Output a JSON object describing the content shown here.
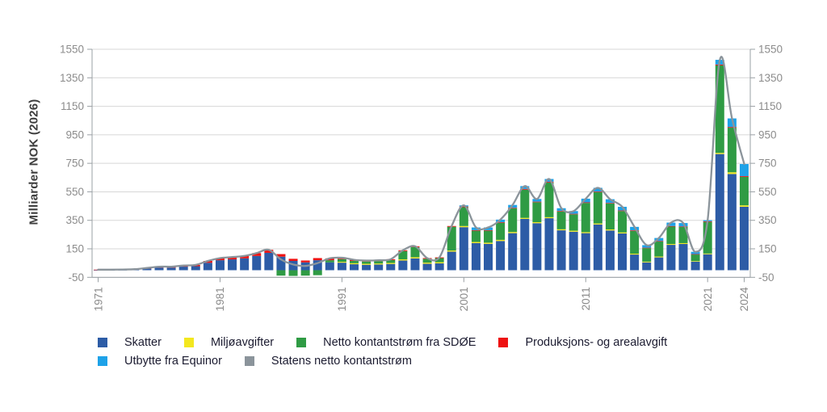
{
  "chart_data": {
    "type": "bar",
    "stacked": true,
    "title": "",
    "ylabel": "Milliarder NOK (2026)",
    "ylim": [
      -50,
      1550
    ],
    "y_ticks": [
      -50,
      150,
      350,
      550,
      750,
      950,
      1150,
      1350,
      1550
    ],
    "x_tick_labels": [
      "1971",
      "1981",
      "1991",
      "2001",
      "2011",
      "2021",
      "2024"
    ],
    "grid": true,
    "legend_position": "bottom",
    "years": [
      1971,
      1972,
      1973,
      1974,
      1975,
      1976,
      1977,
      1978,
      1979,
      1980,
      1981,
      1982,
      1983,
      1984,
      1985,
      1986,
      1987,
      1988,
      1989,
      1990,
      1991,
      1992,
      1993,
      1994,
      1995,
      1996,
      1997,
      1998,
      1999,
      2000,
      2001,
      2002,
      2003,
      2004,
      2005,
      2006,
      2007,
      2008,
      2009,
      2010,
      2011,
      2012,
      2013,
      2014,
      2015,
      2016,
      2017,
      2018,
      2019,
      2020,
      2021,
      2022,
      2023,
      2024
    ],
    "series": [
      {
        "name": "Skatter",
        "color": "#2d5ca6",
        "values": [
          1,
          1,
          2,
          3,
          11,
          18,
          18,
          25,
          28,
          52,
          70,
          76,
          83,
          100,
          122,
          95,
          65,
          55,
          70,
          55,
          53,
          42,
          38,
          40,
          44,
          68,
          83,
          45,
          48,
          130,
          302,
          190,
          185,
          205,
          260,
          360,
          330,
          365,
          280,
          270,
          260,
          321,
          279,
          258,
          110,
          55,
          90,
          178,
          184,
          60,
          112,
          815,
          675,
          445
        ]
      },
      {
        "name": "Miljøavgifter",
        "color": "#f3e71f",
        "values": [
          0,
          0,
          0,
          0,
          0,
          0,
          0,
          0,
          0,
          0,
          0,
          0,
          0,
          0,
          0,
          0,
          0,
          0,
          0,
          0,
          6,
          7,
          7,
          7,
          7,
          8,
          8,
          8,
          8,
          8,
          8,
          8,
          8,
          8,
          8,
          7,
          7,
          7,
          7,
          7,
          7,
          7,
          7,
          7,
          6,
          5,
          6,
          6,
          6,
          4,
          5,
          8,
          12,
          10
        ]
      },
      {
        "name": "Netto kontantstrøm fra SDØE",
        "color": "#2f9b44",
        "values": [
          0,
          0,
          0,
          0,
          0,
          0,
          0,
          0,
          0,
          0,
          0,
          0,
          0,
          0,
          0,
          -38,
          -40,
          -38,
          -35,
          15,
          19,
          16,
          16,
          17,
          20,
          58,
          71,
          27,
          29,
          167,
          132,
          79,
          84,
          120,
          166,
          198,
          140,
          243,
          125,
          115,
          205,
          220,
          182,
          150,
          160,
          95,
          105,
          122,
          113,
          46,
          222,
          614,
          313,
          200
        ]
      },
      {
        "name": "Produksjons- og arealavgift",
        "color": "#ee1111",
        "values": [
          3,
          3,
          3,
          4,
          5,
          7,
          7,
          8,
          9,
          13,
          15,
          16,
          17,
          20,
          21,
          18,
          15,
          13,
          15,
          13,
          10,
          8,
          7,
          6,
          6,
          6,
          6,
          5,
          5,
          5,
          5,
          4,
          4,
          4,
          4,
          5,
          4,
          5,
          4,
          4,
          4,
          4,
          4,
          4,
          4,
          3,
          4,
          4,
          4,
          3,
          4,
          6,
          5,
          5
        ]
      },
      {
        "name": "Utbytte fra Equinor",
        "color": "#1ea2e8",
        "values": [
          0,
          0,
          0,
          0,
          0,
          0,
          0,
          0,
          0,
          0,
          0,
          0,
          0,
          0,
          0,
          0,
          0,
          0,
          0,
          0,
          0,
          0,
          0,
          0,
          0,
          0,
          0,
          0,
          0,
          0,
          8,
          19,
          19,
          18,
          20,
          20,
          19,
          20,
          19,
          19,
          26,
          26,
          26,
          26,
          24,
          18,
          21,
          24,
          24,
          16,
          8,
          33,
          60,
          85
        ]
      }
    ],
    "line_series": {
      "name": "Statens netto kontantstrøm",
      "color": "#8b949b",
      "values": [
        4,
        4,
        5,
        7,
        16,
        25,
        25,
        33,
        37,
        65,
        85,
        92,
        100,
        120,
        143,
        75,
        40,
        30,
        50,
        83,
        88,
        73,
        68,
        70,
        77,
        140,
        168,
        85,
        90,
        310,
        455,
        300,
        300,
        355,
        458,
        590,
        500,
        640,
        435,
        415,
        502,
        578,
        498,
        445,
        304,
        176,
        226,
        334,
        331,
        129,
        351,
        1476,
        1065,
        745
      ]
    }
  },
  "legend": {
    "items": [
      {
        "label": "Skatter",
        "color": "#2d5ca6",
        "row": 0
      },
      {
        "label": "Miljøavgifter",
        "color": "#f3e71f",
        "row": 0
      },
      {
        "label": "Netto kontantstrøm fra SDØE",
        "color": "#2f9b44",
        "row": 0
      },
      {
        "label": "Produksjons- og arealavgift",
        "color": "#ee1111",
        "row": 0
      },
      {
        "label": "Utbytte fra Equinor",
        "color": "#1ea2e8",
        "row": 1
      },
      {
        "label": "Statens netto kontantstrøm",
        "color": "#8b949b",
        "row": 1
      }
    ]
  },
  "style": {
    "grid_color": "#d7d7d7",
    "axis_color": "#9aa0a4",
    "tick_label_color": "#8c8c8c",
    "axis_title_color": "#3d3d3d",
    "legend_text_color": "#1b1b30",
    "background": "#ffffff"
  }
}
